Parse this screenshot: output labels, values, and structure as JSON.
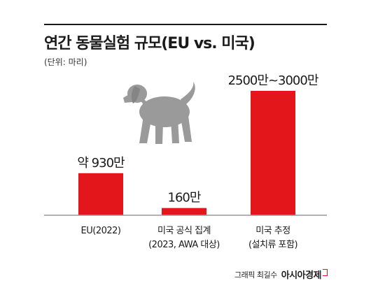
{
  "chart_data": {
    "type": "bar",
    "title": "연간 동물실험 규모(EU vs. 미국)",
    "subtitle": "(단위: 마리)",
    "categories": [
      [
        "EU(2022)"
      ],
      [
        "미국 공식 집계",
        "(2023, AWA 대상)"
      ],
      [
        "미국 추정",
        "(설치류 포함)"
      ]
    ],
    "values": [
      9300000,
      1600000,
      27500000
    ],
    "data_labels": [
      "약 930만",
      "160만",
      "2500만~3000만"
    ],
    "bar_color": "#e3161b",
    "axis_color": "#999999",
    "grid": false,
    "legend": "none"
  },
  "credit": {
    "byline": "그래픽 최길수",
    "brand": "아시아경제"
  },
  "illustration": {
    "icon": "dog-silhouette-icon",
    "color": "#9a9a9a"
  }
}
